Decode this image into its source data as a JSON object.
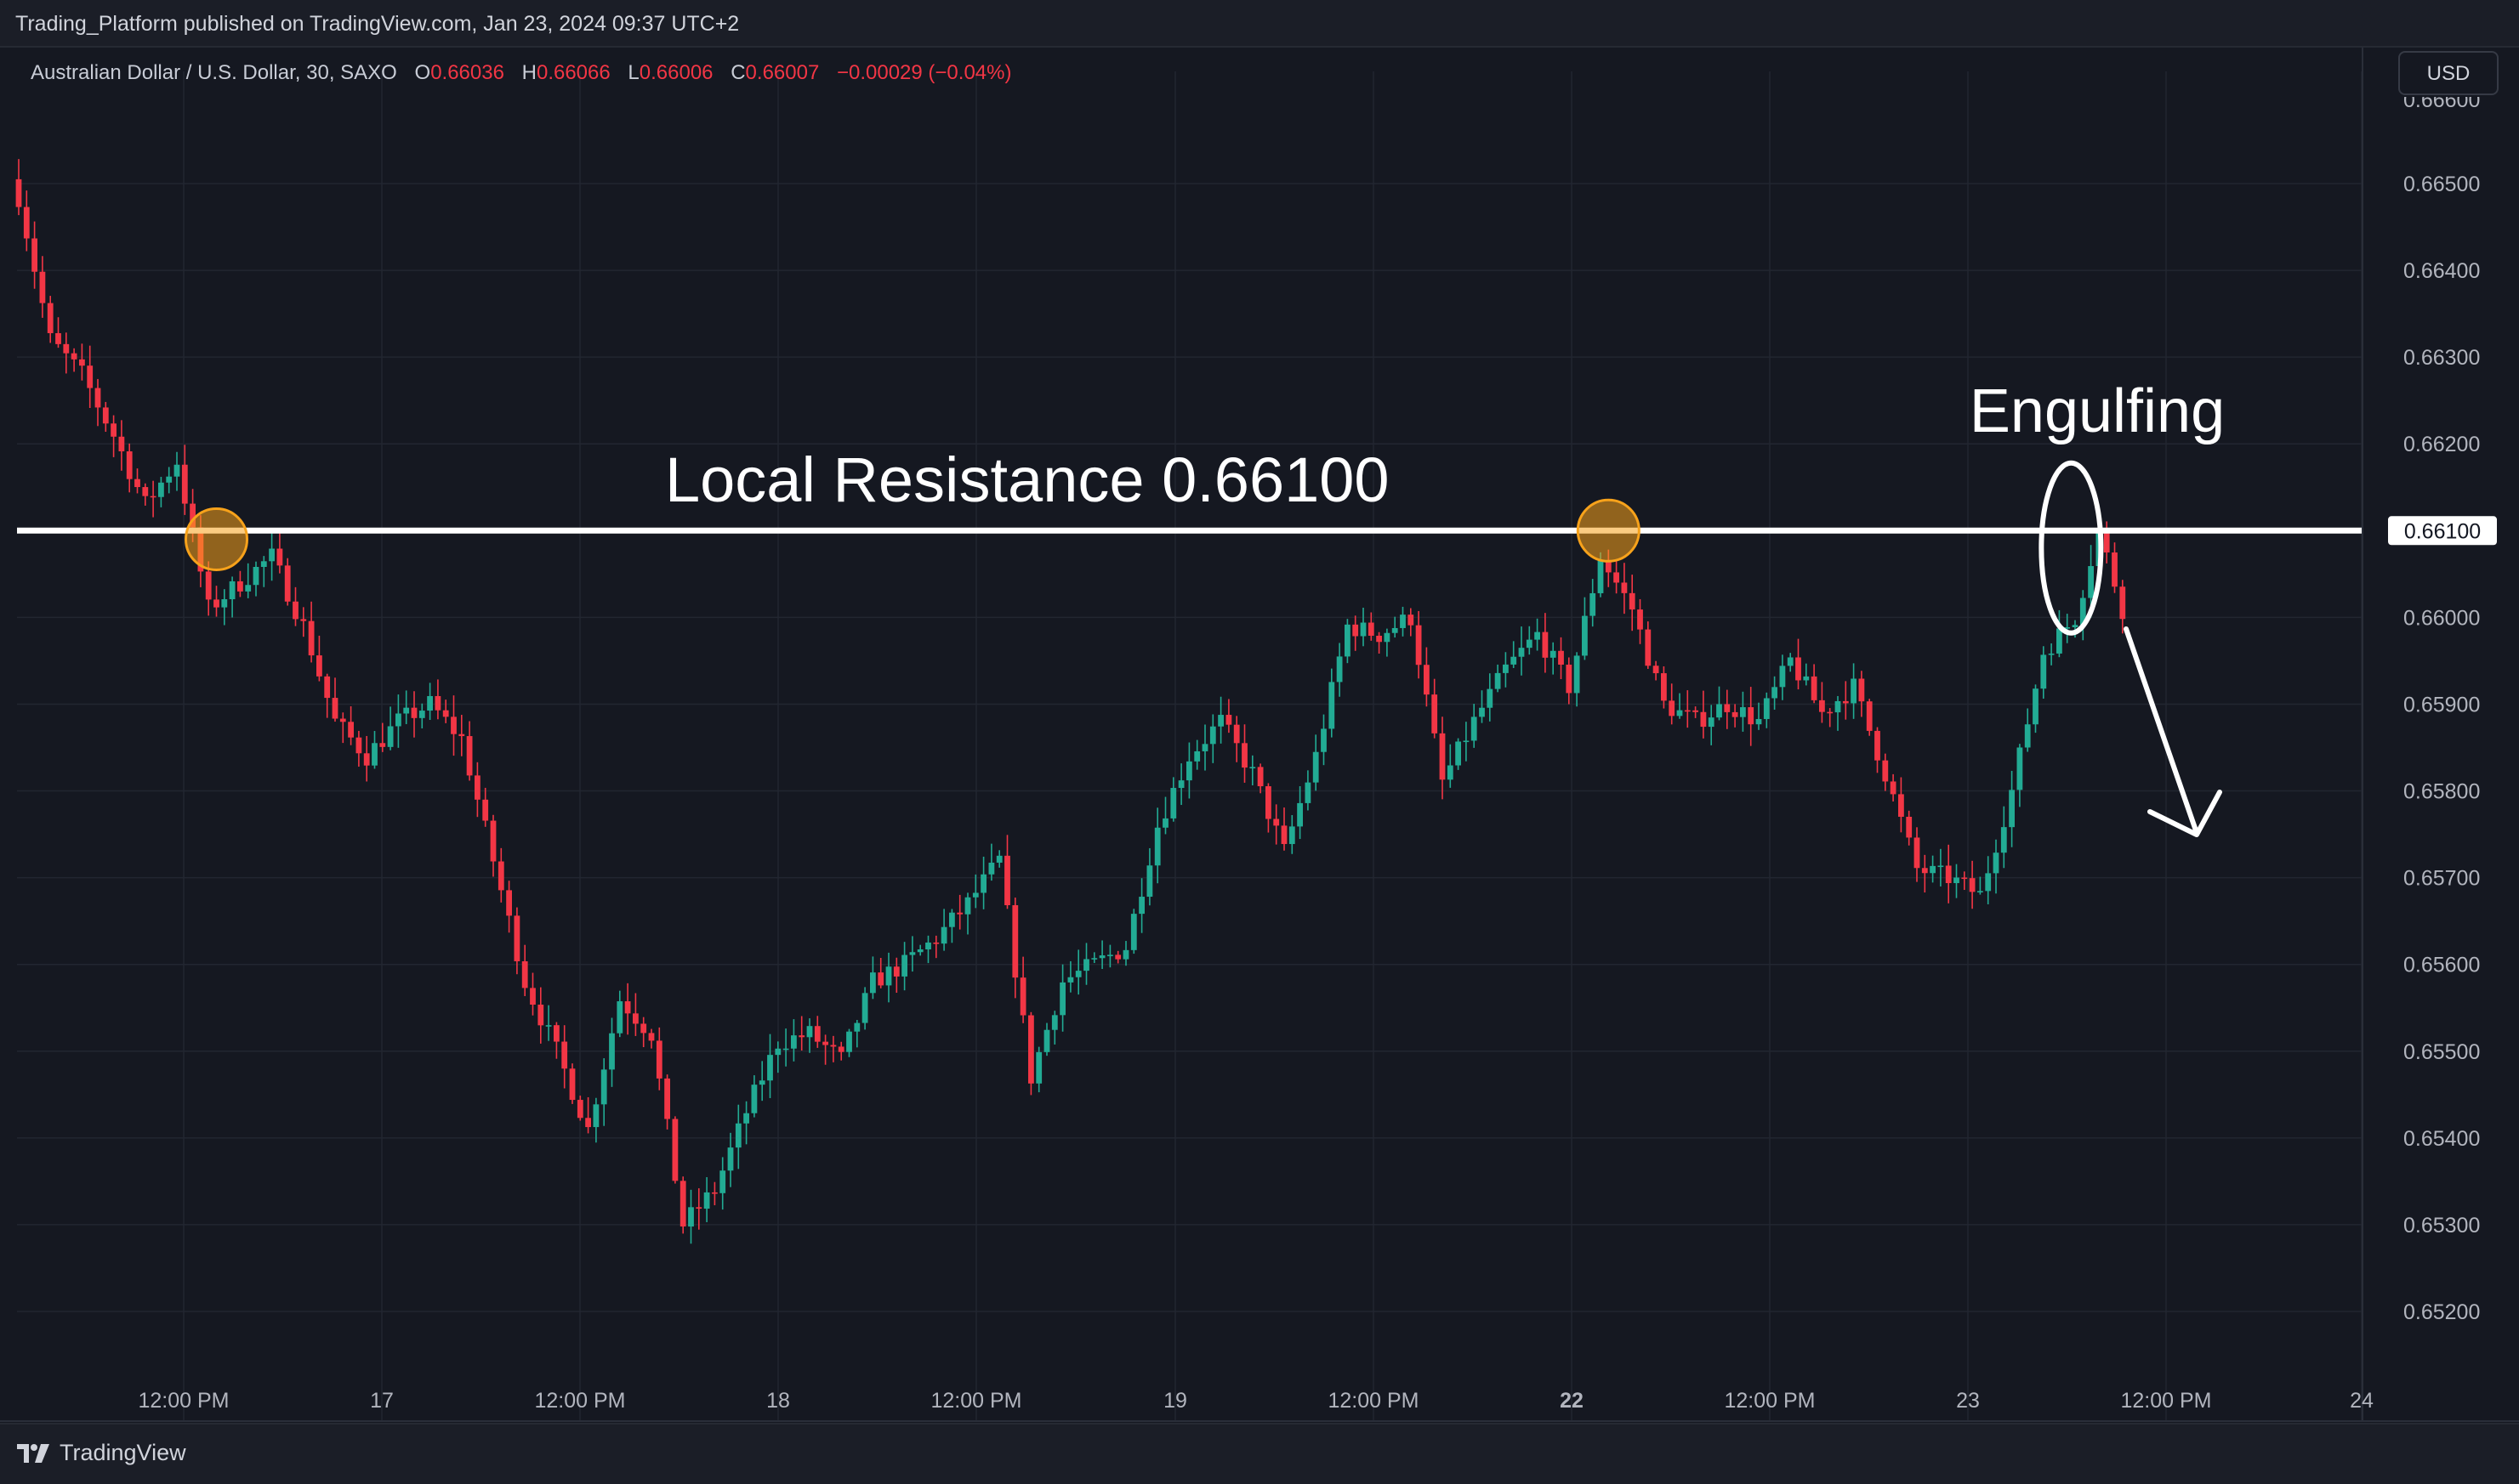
{
  "header": {
    "published": "Trading_Platform published on TradingView.com, Jan 23, 2024 09:37 UTC+2"
  },
  "legend": {
    "symbol": "Australian Dollar / U.S. Dollar, 30, SAXO",
    "open_label": "O",
    "open": "0.66036",
    "high_label": "H",
    "high": "0.66066",
    "low_label": "L",
    "low": "0.66006",
    "close_label": "C",
    "close": "0.66007",
    "change": "−0.00029 (−0.04%)"
  },
  "currency_button": "USD",
  "footer": {
    "logo_text": "TradingView",
    "logo_icon": "tradingview-logo-icon"
  },
  "colors": {
    "background": "#151821",
    "up": "#22ab94",
    "down": "#f23645",
    "grid": "#222631",
    "text": "#b2b5be",
    "line": "#ffffff",
    "marker": "#f7a21b"
  },
  "chart_data": {
    "type": "candlestick",
    "symbol": "AUDUSD",
    "timeframe": "30",
    "ylim": [
      0.6513,
      0.6657
    ],
    "y_ticks": [
      "0.66500",
      "0.66400",
      "0.66300",
      "0.66200",
      "0.66100",
      "0.66000",
      "0.65900",
      "0.65800",
      "0.65700",
      "0.65600",
      "0.65500",
      "0.65400",
      "0.65300",
      "0.65200"
    ],
    "x_ticks": [
      "12:00 PM",
      "17",
      "12:00 PM",
      "18",
      "12:00 PM",
      "19",
      "12:00 PM",
      "22",
      "12:00 PM",
      "23",
      "12:00 PM",
      "24"
    ],
    "bold_x_tick": "22",
    "price_path": [
      {
        "i": 0,
        "p": 0.66485
      },
      {
        "i": 4,
        "p": 0.6632
      },
      {
        "i": 8,
        "p": 0.6628
      },
      {
        "i": 12,
        "p": 0.6621
      },
      {
        "i": 16,
        "p": 0.6613
      },
      {
        "i": 20,
        "p": 0.6618
      },
      {
        "i": 24,
        "p": 0.6601
      },
      {
        "i": 28,
        "p": 0.6604
      },
      {
        "i": 32,
        "p": 0.6607
      },
      {
        "i": 36,
        "p": 0.6599
      },
      {
        "i": 40,
        "p": 0.6588
      },
      {
        "i": 44,
        "p": 0.6584
      },
      {
        "i": 48,
        "p": 0.6588
      },
      {
        "i": 52,
        "p": 0.659
      },
      {
        "i": 56,
        "p": 0.6586
      },
      {
        "i": 60,
        "p": 0.6572
      },
      {
        "i": 64,
        "p": 0.6558
      },
      {
        "i": 68,
        "p": 0.655
      },
      {
        "i": 72,
        "p": 0.6541
      },
      {
        "i": 76,
        "p": 0.6556
      },
      {
        "i": 80,
        "p": 0.6552
      },
      {
        "i": 84,
        "p": 0.653
      },
      {
        "i": 88,
        "p": 0.6534
      },
      {
        "i": 92,
        "p": 0.6543
      },
      {
        "i": 96,
        "p": 0.6551
      },
      {
        "i": 100,
        "p": 0.6552
      },
      {
        "i": 104,
        "p": 0.6549
      },
      {
        "i": 108,
        "p": 0.6558
      },
      {
        "i": 112,
        "p": 0.656
      },
      {
        "i": 116,
        "p": 0.6563
      },
      {
        "i": 120,
        "p": 0.6567
      },
      {
        "i": 124,
        "p": 0.6572
      },
      {
        "i": 128,
        "p": 0.6547
      },
      {
        "i": 132,
        "p": 0.6558
      },
      {
        "i": 136,
        "p": 0.656
      },
      {
        "i": 140,
        "p": 0.6562
      },
      {
        "i": 144,
        "p": 0.6576
      },
      {
        "i": 148,
        "p": 0.6584
      },
      {
        "i": 152,
        "p": 0.6588
      },
      {
        "i": 156,
        "p": 0.6582
      },
      {
        "i": 160,
        "p": 0.6573
      },
      {
        "i": 164,
        "p": 0.6584
      },
      {
        "i": 168,
        "p": 0.6599
      },
      {
        "i": 172,
        "p": 0.6598
      },
      {
        "i": 176,
        "p": 0.66
      },
      {
        "i": 180,
        "p": 0.6581
      },
      {
        "i": 184,
        "p": 0.6588
      },
      {
        "i": 188,
        "p": 0.6594
      },
      {
        "i": 192,
        "p": 0.6598
      },
      {
        "i": 196,
        "p": 0.6592
      },
      {
        "i": 200,
        "p": 0.6607
      },
      {
        "i": 204,
        "p": 0.6601
      },
      {
        "i": 208,
        "p": 0.659
      },
      {
        "i": 212,
        "p": 0.6588
      },
      {
        "i": 216,
        "p": 0.659
      },
      {
        "i": 220,
        "p": 0.6588
      },
      {
        "i": 224,
        "p": 0.6595
      },
      {
        "i": 228,
        "p": 0.6589
      },
      {
        "i": 232,
        "p": 0.6592
      },
      {
        "i": 236,
        "p": 0.6582
      },
      {
        "i": 240,
        "p": 0.6571
      },
      {
        "i": 244,
        "p": 0.657
      },
      {
        "i": 248,
        "p": 0.6568
      },
      {
        "i": 252,
        "p": 0.658
      },
      {
        "i": 256,
        "p": 0.6596
      },
      {
        "i": 260,
        "p": 0.66
      },
      {
        "i": 263,
        "p": 0.661
      },
      {
        "i": 266,
        "p": 0.6601
      }
    ],
    "total_candles": 267,
    "annotations": {
      "resistance_price": 0.661,
      "resistance_text": "Local Resistance 0.66100",
      "resistance_axis_label": "0.66100",
      "engulfing_text": "Engulfing",
      "touch_markers": [
        {
          "i": 25,
          "price": 0.6609
        },
        {
          "i": 201,
          "price": 0.661
        }
      ],
      "engulfing_ellipse": {
        "i": 259.5,
        "price": 0.6608
      },
      "arrow": {
        "from": {
          "i": 263,
          "price": 0.66
        },
        "to": {
          "i": 274,
          "price": 0.6578
        }
      }
    }
  }
}
